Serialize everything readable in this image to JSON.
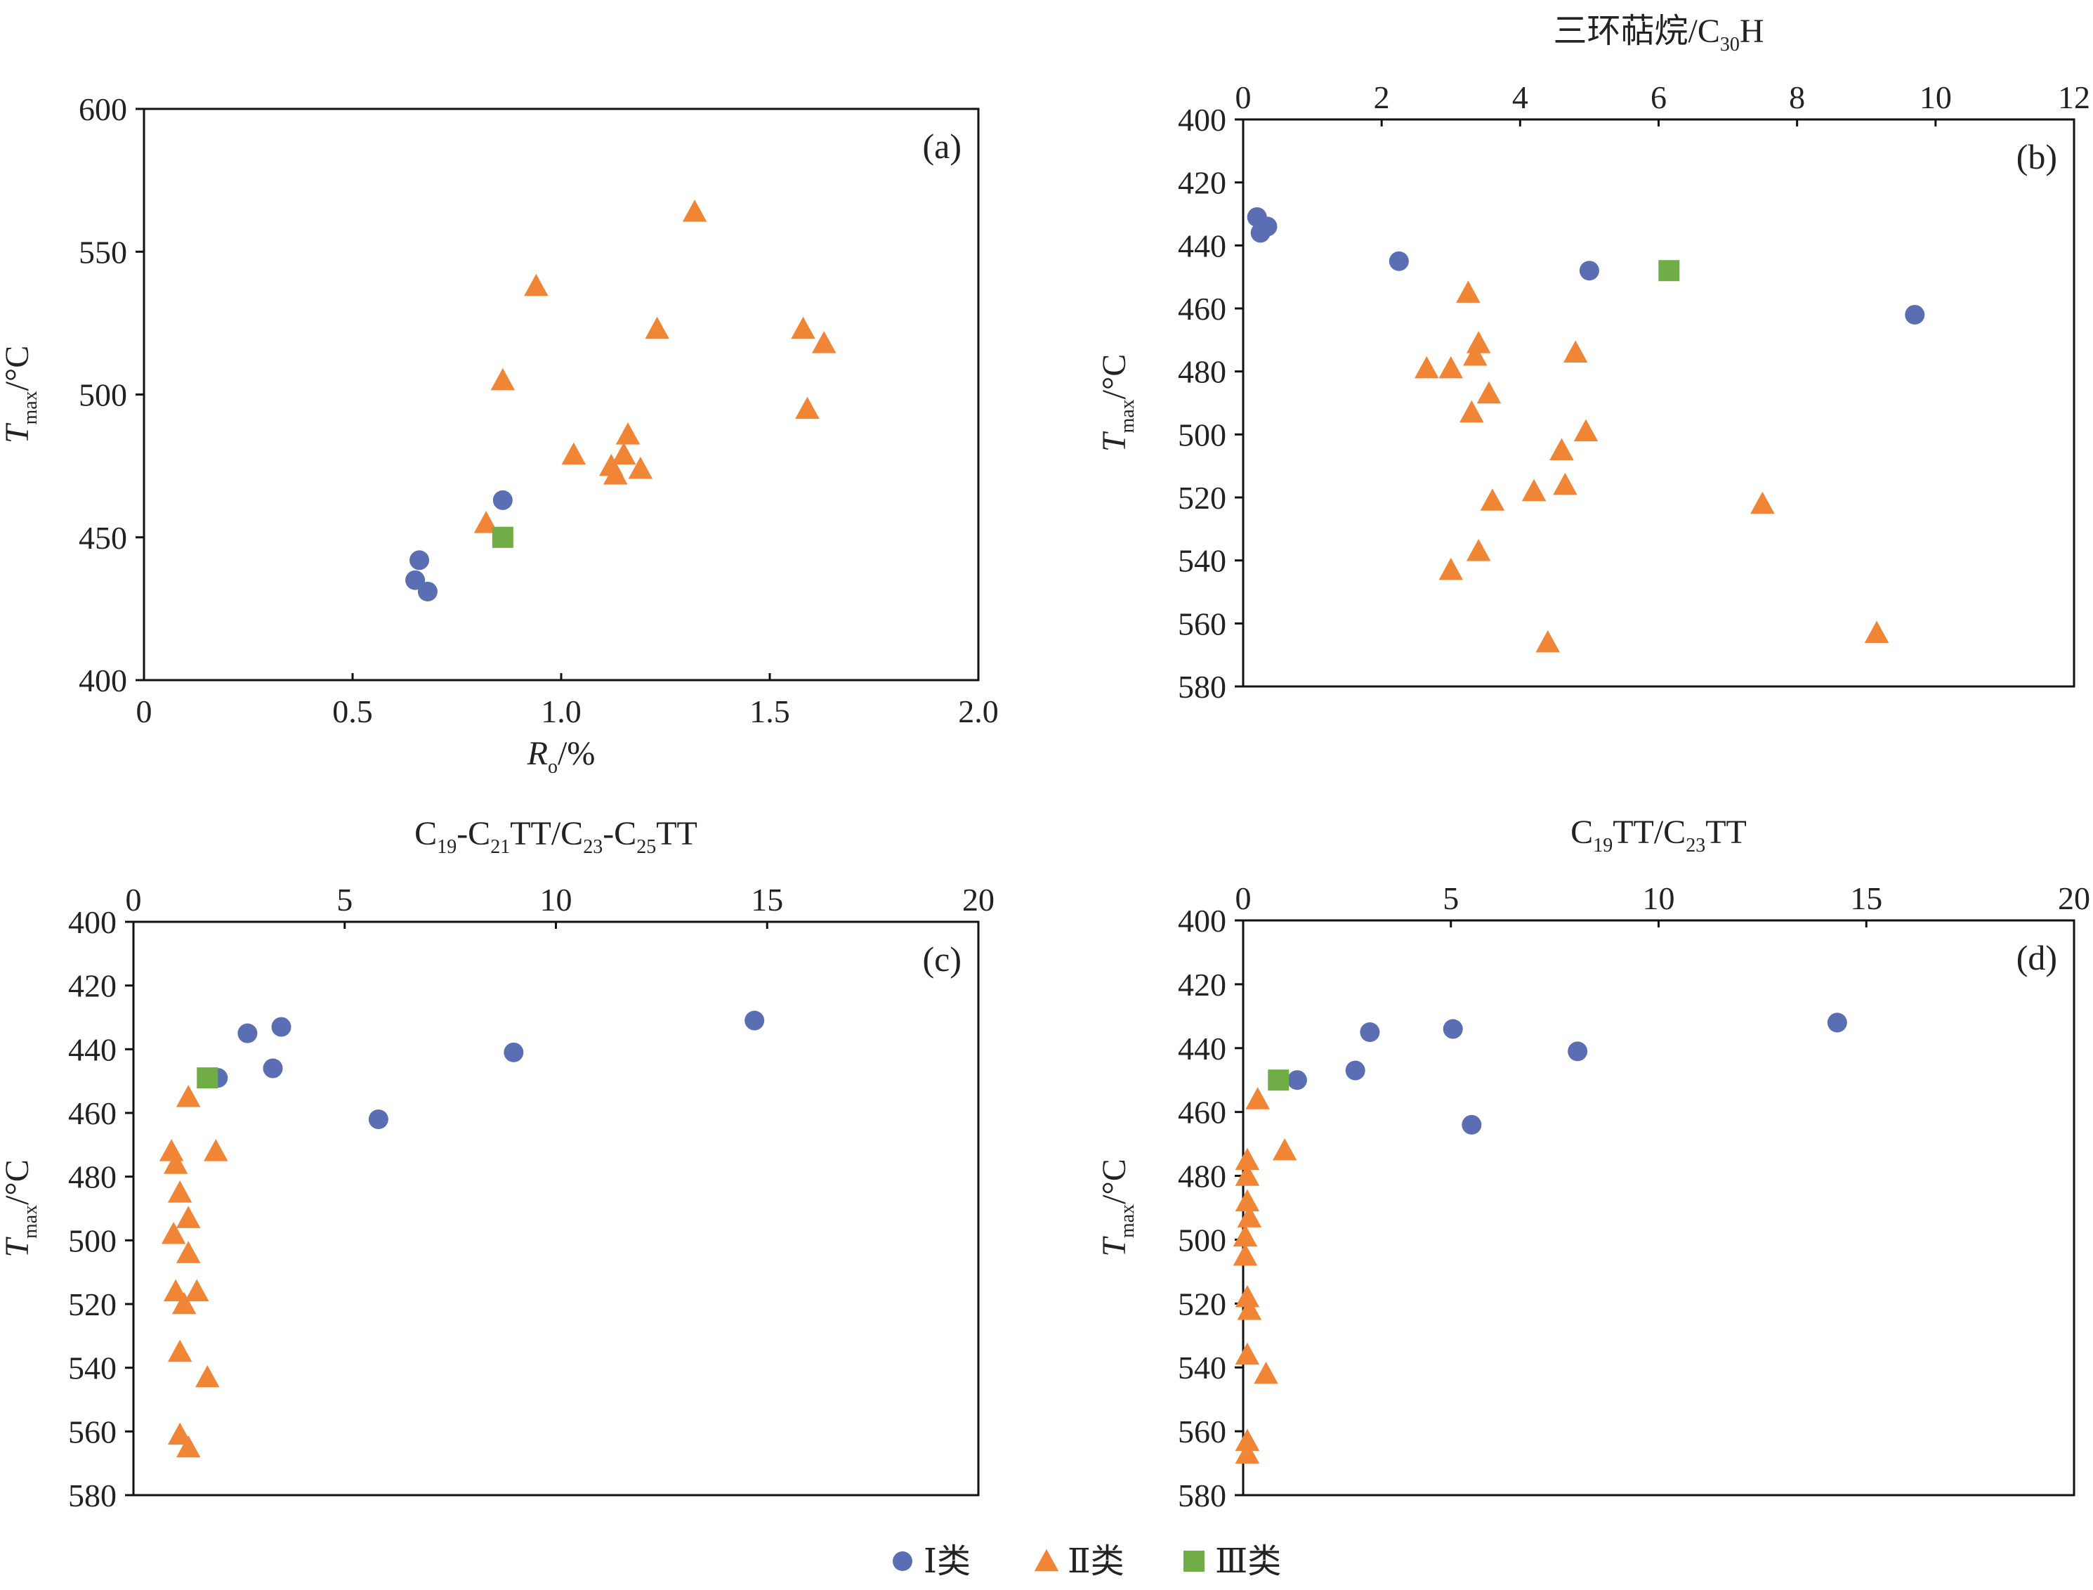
{
  "colors": {
    "typeI": "#5b6db3",
    "typeII": "#f08536",
    "typeIII": "#70ad47"
  },
  "legend": [
    {
      "key": "typeI",
      "label": "Ⅰ类",
      "shape": "circle"
    },
    {
      "key": "typeII",
      "label": "Ⅱ类",
      "shape": "triangle"
    },
    {
      "key": "typeIII",
      "label": "Ⅲ类",
      "shape": "square"
    }
  ],
  "chart_data": [
    {
      "id": "a",
      "type": "scatter",
      "panel_label": "(a)",
      "xlabel": {
        "main": "R",
        "sub": "o",
        "rest": "/%"
      },
      "ylabel": {
        "main": "T",
        "sub": "max",
        "rest": "/°C"
      },
      "xlim": [
        0,
        2.0
      ],
      "ylim": [
        400,
        600
      ],
      "y_reversed": false,
      "x_axis_position": "bottom",
      "x_ticks": [
        "0",
        "0.5",
        "1.0",
        "1.5",
        "2.0"
      ],
      "y_ticks": [
        "400",
        "450",
        "500",
        "550",
        "600"
      ],
      "grid": false,
      "series": [
        {
          "name": "Ⅰ类",
          "key": "typeI",
          "points": [
            [
              0.66,
              442
            ],
            [
              0.65,
              435
            ],
            [
              0.68,
              431
            ],
            [
              0.86,
              463
            ]
          ]
        },
        {
          "name": "Ⅱ类",
          "key": "typeII",
          "points": [
            [
              0.82,
              455
            ],
            [
              0.86,
              505
            ],
            [
              0.94,
              538
            ],
            [
              1.03,
              479
            ],
            [
              1.12,
              475
            ],
            [
              1.13,
              472
            ],
            [
              1.15,
              479
            ],
            [
              1.16,
              486
            ],
            [
              1.19,
              474
            ],
            [
              1.23,
              523
            ],
            [
              1.32,
              564
            ],
            [
              1.58,
              523
            ],
            [
              1.59,
              495
            ],
            [
              1.63,
              518
            ]
          ]
        },
        {
          "name": "Ⅲ类",
          "key": "typeIII",
          "points": [
            [
              0.86,
              450
            ]
          ]
        }
      ]
    },
    {
      "id": "b",
      "type": "scatter",
      "panel_label": "(b)",
      "xlabel": {
        "main": "三环萜烷/C",
        "sub": "30",
        "rest": "H"
      },
      "ylabel": {
        "main": "T",
        "sub": "max",
        "rest": "/°C"
      },
      "xlim": [
        0,
        12
      ],
      "ylim": [
        400,
        580
      ],
      "y_reversed": true,
      "x_axis_position": "top",
      "x_ticks": [
        "0",
        "2",
        "4",
        "6",
        "8",
        "10",
        "12"
      ],
      "y_ticks": [
        "400",
        "420",
        "440",
        "460",
        "480",
        "500",
        "520",
        "540",
        "560",
        "580"
      ],
      "grid": false,
      "series": [
        {
          "name": "Ⅰ类",
          "key": "typeI",
          "points": [
            [
              0.2,
              431
            ],
            [
              0.25,
              436
            ],
            [
              0.35,
              434
            ],
            [
              2.25,
              445
            ],
            [
              5.0,
              448
            ],
            [
              9.7,
              462
            ]
          ]
        },
        {
          "name": "Ⅱ类",
          "key": "typeII",
          "points": [
            [
              3.25,
              455
            ],
            [
              3.4,
              471
            ],
            [
              3.35,
              475
            ],
            [
              2.65,
              479
            ],
            [
              3.0,
              479
            ],
            [
              4.8,
              474
            ],
            [
              3.55,
              487
            ],
            [
              3.3,
              493
            ],
            [
              4.95,
              499
            ],
            [
              4.6,
              505
            ],
            [
              4.65,
              516
            ],
            [
              4.2,
              518
            ],
            [
              3.6,
              521
            ],
            [
              7.5,
              522
            ],
            [
              3.4,
              537
            ],
            [
              3.0,
              543
            ],
            [
              4.4,
              566
            ],
            [
              9.15,
              563
            ]
          ]
        },
        {
          "name": "Ⅲ类",
          "key": "typeIII",
          "points": [
            [
              6.15,
              448
            ]
          ]
        }
      ]
    },
    {
      "id": "c",
      "type": "scatter",
      "panel_label": "(c)",
      "xlabel": {
        "parts": [
          [
            "C",
            ""
          ],
          [
            "19",
            "sub"
          ],
          [
            "-C",
            ""
          ],
          [
            "21",
            "sub"
          ],
          [
            "TT/C",
            ""
          ],
          [
            "23",
            "sub"
          ],
          [
            "-C",
            ""
          ],
          [
            "25",
            "sub"
          ],
          [
            "TT",
            ""
          ]
        ]
      },
      "ylabel": {
        "main": "T",
        "sub": "max",
        "rest": "/°C"
      },
      "xlim": [
        0,
        20
      ],
      "ylim": [
        400,
        580
      ],
      "y_reversed": true,
      "x_axis_position": "top",
      "x_ticks": [
        "0",
        "5",
        "10",
        "15",
        "20"
      ],
      "y_ticks": [
        "400",
        "420",
        "440",
        "460",
        "480",
        "500",
        "520",
        "540",
        "560",
        "580"
      ],
      "grid": false,
      "series": [
        {
          "name": "Ⅰ类",
          "key": "typeI",
          "points": [
            [
              2.7,
              435
            ],
            [
              3.5,
              433
            ],
            [
              14.7,
              431
            ],
            [
              9.0,
              441
            ],
            [
              3.3,
              446
            ],
            [
              2.0,
              449
            ],
            [
              5.8,
              462
            ]
          ]
        },
        {
          "name": "Ⅱ类",
          "key": "typeII",
          "points": [
            [
              1.3,
              455
            ],
            [
              1.95,
              472
            ],
            [
              0.9,
              472
            ],
            [
              1.0,
              476
            ],
            [
              1.1,
              485
            ],
            [
              1.3,
              493
            ],
            [
              0.95,
              498
            ],
            [
              1.3,
              504
            ],
            [
              1.0,
              516
            ],
            [
              1.5,
              516
            ],
            [
              1.2,
              520
            ],
            [
              1.1,
              535
            ],
            [
              1.75,
              543
            ],
            [
              1.1,
              561
            ],
            [
              1.3,
              565
            ]
          ]
        },
        {
          "name": "Ⅲ类",
          "key": "typeIII",
          "points": [
            [
              1.75,
              449
            ]
          ]
        }
      ]
    },
    {
      "id": "d",
      "type": "scatter",
      "panel_label": "(d)",
      "xlabel": {
        "parts": [
          [
            "C",
            ""
          ],
          [
            "19",
            "sub"
          ],
          [
            "TT/C",
            ""
          ],
          [
            "23",
            "sub"
          ],
          [
            "TT",
            ""
          ]
        ]
      },
      "ylabel": {
        "main": "T",
        "sub": "max",
        "rest": "/°C"
      },
      "xlim": [
        0,
        20
      ],
      "ylim": [
        400,
        580
      ],
      "y_reversed": true,
      "x_axis_position": "top",
      "x_ticks": [
        "0",
        "5",
        "10",
        "15",
        "20"
      ],
      "y_ticks": [
        "400",
        "420",
        "440",
        "460",
        "480",
        "500",
        "520",
        "540",
        "560",
        "580"
      ],
      "grid": false,
      "series": [
        {
          "name": "Ⅰ类",
          "key": "typeI",
          "points": [
            [
              3.05,
              435
            ],
            [
              5.05,
              434
            ],
            [
              14.3,
              432
            ],
            [
              8.05,
              441
            ],
            [
              2.7,
              447
            ],
            [
              1.3,
              450
            ],
            [
              5.5,
              464
            ]
          ]
        },
        {
          "name": "Ⅱ类",
          "key": "typeII",
          "points": [
            [
              0.35,
              456
            ],
            [
              1.0,
              472
            ],
            [
              0.1,
              475
            ],
            [
              0.1,
              480
            ],
            [
              0.1,
              488
            ],
            [
              0.15,
              493
            ],
            [
              0.05,
              499
            ],
            [
              0.05,
              505
            ],
            [
              0.1,
              518
            ],
            [
              0.15,
              522
            ],
            [
              0.1,
              536
            ],
            [
              0.55,
              542
            ],
            [
              0.1,
              563
            ],
            [
              0.1,
              567
            ]
          ]
        },
        {
          "name": "Ⅲ类",
          "key": "typeIII",
          "points": [
            [
              0.85,
              450
            ]
          ]
        }
      ]
    }
  ]
}
